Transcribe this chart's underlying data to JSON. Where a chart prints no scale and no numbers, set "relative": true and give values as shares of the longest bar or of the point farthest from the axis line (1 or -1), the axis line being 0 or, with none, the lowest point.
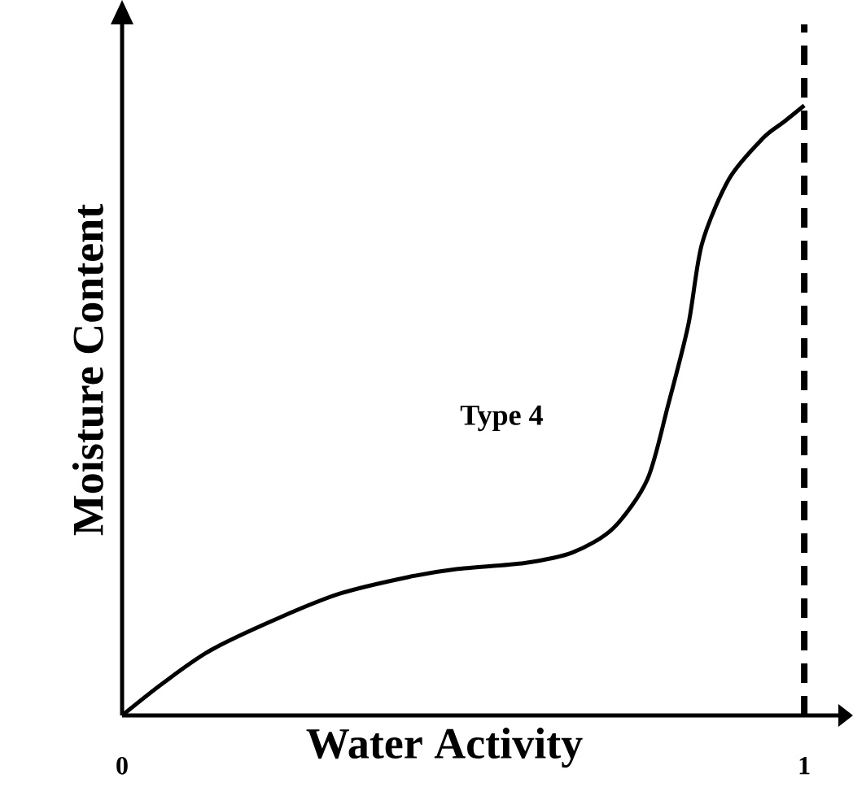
{
  "chart_data": {
    "type": "line",
    "xlabel": "Water Activity",
    "ylabel": "Moisture Content",
    "relative": true,
    "xlim": [
      0,
      1.05
    ],
    "xticks": [
      0,
      1
    ],
    "series": [
      {
        "color": "#000000",
        "x": [
          0,
          0.06,
          0.13,
          0.23,
          0.32,
          0.42,
          0.49,
          0.59,
          0.66,
          0.72,
          0.77,
          0.8,
          0.83,
          0.85,
          0.89,
          0.94,
          0.97,
          1.0
        ],
        "values": [
          0,
          0.053,
          0.107,
          0.16,
          0.2,
          0.227,
          0.24,
          0.25,
          0.267,
          0.307,
          0.387,
          0.507,
          0.64,
          0.773,
          0.88,
          0.947,
          0.973,
          1.0
        ]
      }
    ],
    "ref_lines": [
      {
        "axis": "x",
        "value": 1,
        "color": "#000000",
        "line_style": "dashed"
      }
    ],
    "annotations": [
      "Type 4"
    ],
    "marker": "none",
    "line_style": "solid",
    "grid": false
  }
}
